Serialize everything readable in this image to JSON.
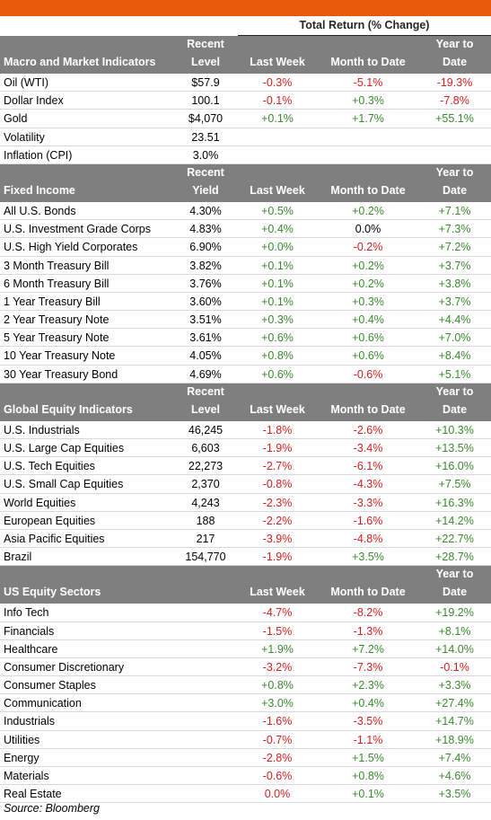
{
  "total_return_title": "Total Return (% Change)",
  "source": "Source: Bloomberg",
  "colors": {
    "banner": "#e8590c",
    "header_bg": "#7f7f7f",
    "positive": "#3a8a2e",
    "negative": "#d21f1f"
  },
  "sections": [
    {
      "title": "Macro and Market Indicators",
      "col1": [
        "Recent",
        "Level"
      ],
      "col2": "Last Week",
      "col3": "Month to Date",
      "col4": [
        "Year to",
        "Date"
      ],
      "rows": [
        {
          "name": "Oil (WTI)",
          "level": "$57.9",
          "week": "-0.3%",
          "mtd": "-5.1%",
          "ytd": "-19.3%"
        },
        {
          "name": "Dollar Index",
          "level": "100.1",
          "week": "-0.1%",
          "mtd": "+0.3%",
          "ytd": "-7.8%"
        },
        {
          "name": "Gold",
          "level": "$4,070",
          "week": "+0.1%",
          "mtd": "+1.7%",
          "ytd": "+55.1%"
        },
        {
          "name": "Volatility",
          "level": "23.51",
          "week": "",
          "mtd": "",
          "ytd": ""
        },
        {
          "name": "Inflation (CPI)",
          "level": "3.0%",
          "week": "",
          "mtd": "",
          "ytd": ""
        }
      ]
    },
    {
      "title": "Fixed Income",
      "col1": [
        "Recent",
        "Yield"
      ],
      "col2": "Last Week",
      "col3": "Month to Date",
      "col4": [
        "Year to",
        "Date"
      ],
      "rows": [
        {
          "name": "All U.S. Bonds",
          "level": "4.30%",
          "week": "+0.5%",
          "mtd": "+0.2%",
          "ytd": "+7.1%"
        },
        {
          "name": "U.S. Investment Grade Corps",
          "level": "4.83%",
          "week": "+0.4%",
          "mtd": "0.0%",
          "ytd": "+7.3%"
        },
        {
          "name": "U.S. High Yield Corporates",
          "level": "6.90%",
          "week": "+0.0%",
          "mtd": "-0.2%",
          "ytd": "+7.2%"
        },
        {
          "name": "3 Month Treasury Bill",
          "level": "3.82%",
          "week": "+0.1%",
          "mtd": "+0.2%",
          "ytd": "+3.7%"
        },
        {
          "name": "6 Month Treasury Bill",
          "level": "3.76%",
          "week": "+0.1%",
          "mtd": "+0.2%",
          "ytd": "+3.8%"
        },
        {
          "name": "1 Year Treasury Bill",
          "level": "3.60%",
          "week": "+0.1%",
          "mtd": "+0.3%",
          "ytd": "+3.7%"
        },
        {
          "name": "2 Year Treasury Note",
          "level": "3.51%",
          "week": "+0.3%",
          "mtd": "+0.4%",
          "ytd": "+4.4%"
        },
        {
          "name": "5 Year Treasury Note",
          "level": "3.61%",
          "week": "+0.6%",
          "mtd": "+0.6%",
          "ytd": "+7.0%"
        },
        {
          "name": "10 Year Treasury Note",
          "level": "4.05%",
          "week": "+0.8%",
          "mtd": "+0.6%",
          "ytd": "+8.4%"
        },
        {
          "name": "30 Year Treasury Bond",
          "level": "4.69%",
          "week": "+0.6%",
          "mtd": "-0.6%",
          "ytd": "+5.1%"
        }
      ]
    },
    {
      "title": "Global Equity Indicators",
      "col1": [
        "Recent",
        "Level"
      ],
      "col2": "Last Week",
      "col3": "Month to Date",
      "col4": [
        "Year to",
        "Date"
      ],
      "rows": [
        {
          "name": "U.S. Industrials",
          "level": "46,245",
          "week": "-1.8%",
          "mtd": "-2.6%",
          "ytd": "+10.3%"
        },
        {
          "name": "U.S. Large Cap Equities",
          "level": "6,603",
          "week": "-1.9%",
          "mtd": "-3.4%",
          "ytd": "+13.5%"
        },
        {
          "name": "U.S. Tech Equities",
          "level": "22,273",
          "week": "-2.7%",
          "mtd": "-6.1%",
          "ytd": "+16.0%"
        },
        {
          "name": "U.S. Small Cap Equities",
          "level": "2,370",
          "week": "-0.8%",
          "mtd": "-4.3%",
          "ytd": "+7.5%"
        },
        {
          "name": "World Equities",
          "level": "4,243",
          "week": "-2.3%",
          "mtd": "-3.3%",
          "ytd": "+16.3%"
        },
        {
          "name": "European Equities",
          "level": "188",
          "week": "-2.2%",
          "mtd": "-1.6%",
          "ytd": "+14.2%"
        },
        {
          "name": "Asia Pacific Equities",
          "level": "217",
          "week": "-3.9%",
          "mtd": "-4.8%",
          "ytd": "+22.7%"
        },
        {
          "name": "Brazil",
          "level": "154,770",
          "week": "-1.9%",
          "mtd": "+3.5%",
          "ytd": "+28.7%"
        }
      ]
    },
    {
      "title": "US Equity Sectors",
      "col1": [
        "",
        ""
      ],
      "col2": "Last Week",
      "col3": "Month to Date",
      "col4": [
        "Year to",
        "Date"
      ],
      "rows": [
        {
          "name": "Info Tech",
          "level": "",
          "week": "-4.7%",
          "mtd": "-8.2%",
          "ytd": "+19.2%"
        },
        {
          "name": "Financials",
          "level": "",
          "week": "-1.5%",
          "mtd": "-1.3%",
          "ytd": "+8.1%"
        },
        {
          "name": "Healthcare",
          "level": "",
          "week": "+1.9%",
          "mtd": "+7.2%",
          "ytd": "+14.0%"
        },
        {
          "name": "Consumer Discretionary",
          "level": "",
          "week": "-3.2%",
          "mtd": "-7.3%",
          "ytd": "-0.1%"
        },
        {
          "name": "Consumer Staples",
          "level": "",
          "week": "+0.8%",
          "mtd": "+2.3%",
          "ytd": "+3.3%"
        },
        {
          "name": "Communication",
          "level": "",
          "week": "+3.0%",
          "mtd": "+0.4%",
          "ytd": "+27.4%"
        },
        {
          "name": "Industrials",
          "level": "",
          "week": "-1.6%",
          "mtd": "-3.5%",
          "ytd": "+14.7%"
        },
        {
          "name": "Utilities",
          "level": "",
          "week": "-0.7%",
          "mtd": "-1.1%",
          "ytd": "+18.9%"
        },
        {
          "name": "Energy",
          "level": "",
          "week": "-2.8%",
          "mtd": "+1.5%",
          "ytd": "+7.4%"
        },
        {
          "name": "Materials",
          "level": "",
          "week": "-0.6%",
          "mtd": "+0.8%",
          "ytd": "+4.6%"
        },
        {
          "name": "Real Estate",
          "level": "",
          "week": "0.0%",
          "mtd": "+0.1%",
          "ytd": "+3.5%"
        }
      ]
    }
  ]
}
